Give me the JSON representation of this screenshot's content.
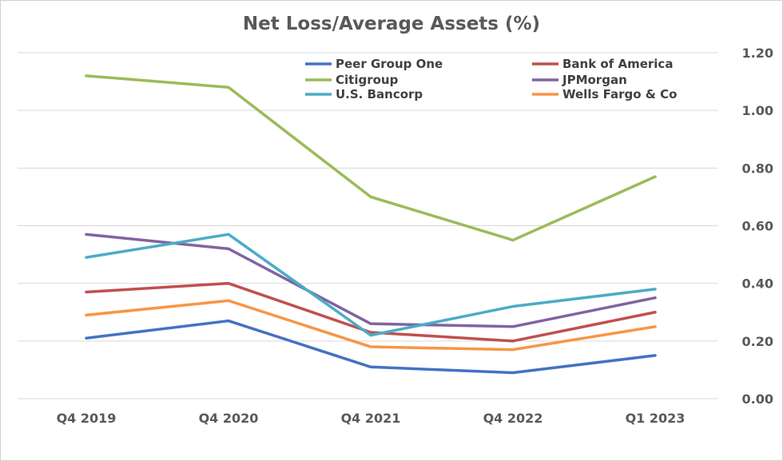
{
  "chart_data": {
    "type": "line",
    "title": "Net Loss/Average Assets (%)",
    "xlabel": "",
    "ylabel": "",
    "categories": [
      "Q4 2019",
      "Q4 2020",
      "Q4 2021",
      "Q4 2022",
      "Q1 2023"
    ],
    "ylim": [
      0,
      1.2
    ],
    "yticks": [
      "0.00",
      "0.20",
      "0.40",
      "0.60",
      "0.80",
      "1.00",
      "1.20"
    ],
    "y_axis_side": "right",
    "grid": true,
    "legend_position": "top-right",
    "series": [
      {
        "name": "Peer Group One",
        "color": "#4472c4",
        "values": [
          0.21,
          0.27,
          0.11,
          0.09,
          0.15
        ]
      },
      {
        "name": "Bank of America",
        "color": "#c0504d",
        "values": [
          0.37,
          0.4,
          0.23,
          0.2,
          0.3
        ]
      },
      {
        "name": "Citigroup",
        "color": "#9bbb59",
        "values": [
          1.12,
          1.08,
          0.7,
          0.55,
          0.77
        ]
      },
      {
        "name": "JPMorgan",
        "color": "#8064a2",
        "values": [
          0.57,
          0.52,
          0.26,
          0.25,
          0.35
        ]
      },
      {
        "name": "U.S. Bancorp",
        "color": "#4bacc6",
        "values": [
          0.49,
          0.57,
          0.22,
          0.32,
          0.38
        ]
      },
      {
        "name": "Wells Fargo & Co",
        "color": "#f79646",
        "values": [
          0.29,
          0.34,
          0.18,
          0.17,
          0.25
        ]
      }
    ]
  }
}
